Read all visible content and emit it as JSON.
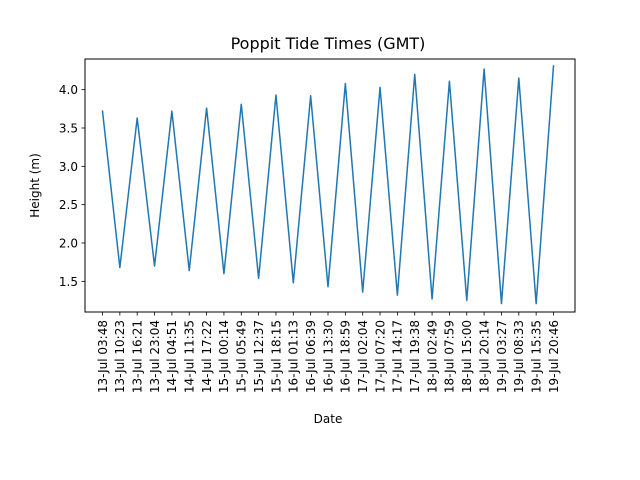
{
  "chart_data": {
    "type": "line",
    "title": "Poppit Tide Times (GMT)",
    "xlabel": "Date",
    "ylabel": "Height (m)",
    "ylim": [
      1.1,
      4.4
    ],
    "yticks": [
      1.5,
      2.0,
      2.5,
      3.0,
      3.5,
      4.0
    ],
    "ytick_labels": [
      "1.5",
      "2.0",
      "2.5",
      "3.0",
      "3.5",
      "4.0"
    ],
    "grid": false,
    "line_color": "#1f77b4",
    "x": [
      "13-Jul 03:48",
      "13-Jul 10:23",
      "13-Jul 16:21",
      "13-Jul 23:04",
      "14-Jul 04:51",
      "14-Jul 11:35",
      "14-Jul 17:22",
      "15-Jul 00:14",
      "15-Jul 05:49",
      "15-Jul 12:37",
      "15-Jul 18:15",
      "16-Jul 01:13",
      "16-Jul 06:39",
      "16-Jul 13:30",
      "16-Jul 18:59",
      "17-Jul 02:04",
      "17-Jul 07:20",
      "17-Jul 14:17",
      "17-Jul 19:38",
      "18-Jul 02:49",
      "18-Jul 07:59",
      "18-Jul 15:00",
      "18-Jul 20:14",
      "19-Jul 03:27",
      "19-Jul 08:33",
      "19-Jul 15:35",
      "19-Jul 20:46"
    ],
    "series": [
      {
        "values": [
          3.72,
          1.68,
          3.63,
          1.7,
          3.72,
          1.64,
          3.76,
          1.6,
          3.81,
          1.54,
          3.93,
          1.48,
          3.92,
          1.43,
          4.08,
          1.36,
          4.03,
          1.32,
          4.2,
          1.27,
          4.11,
          1.25,
          4.27,
          1.21,
          4.15,
          1.21,
          4.31
        ]
      }
    ]
  }
}
